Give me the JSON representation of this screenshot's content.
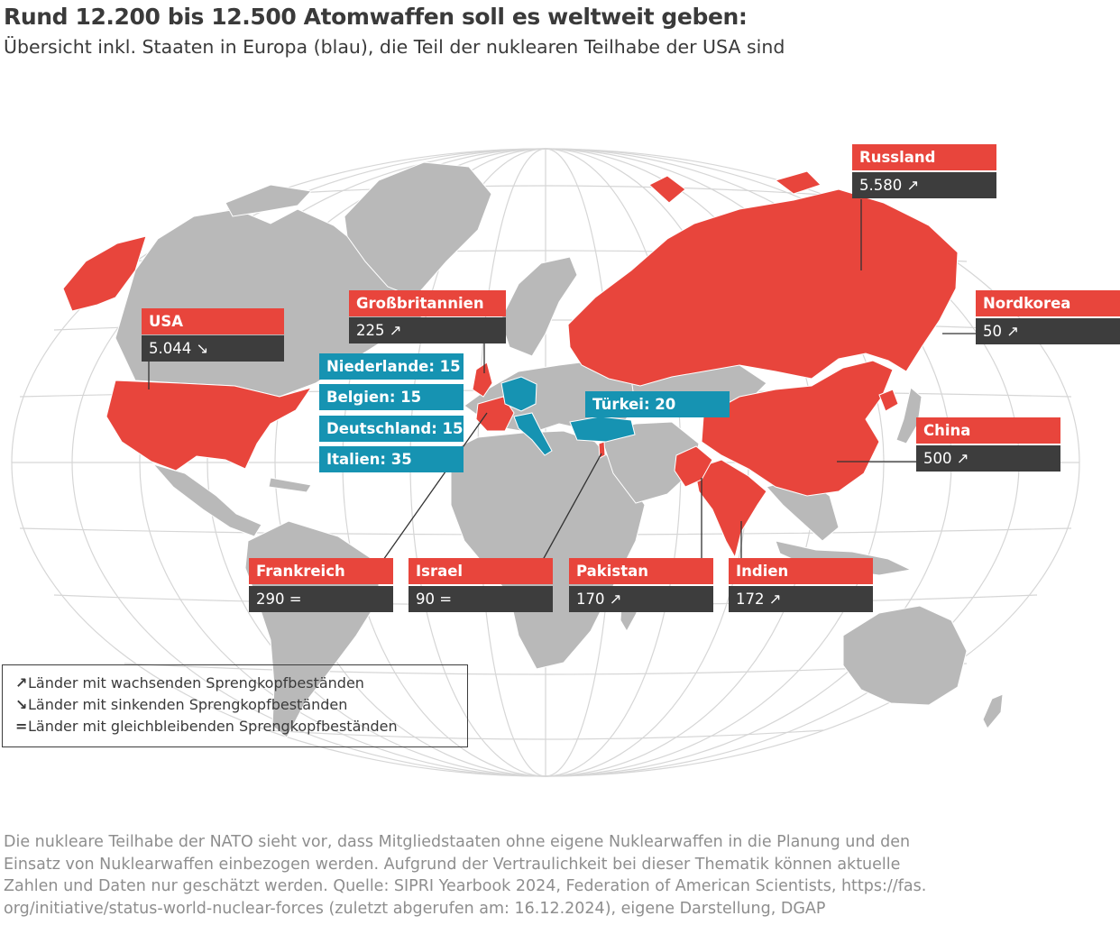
{
  "title": "Rund 12.200 bis 12.500 Atomwaffen soll es weltweit geben:",
  "subtitle": "Übersicht inkl. Staaten in Europa (blau), die Teil der nuklearen Teilhabe der USA sind",
  "colors": {
    "nuclear_state": "#e8453c",
    "sharing_state": "#1693b2",
    "value_box": "#3d3d3d",
    "land": "#b9b9b9",
    "graticule": "#d6d6d6"
  },
  "countries": {
    "usa": {
      "name": "USA",
      "value": "5.044 ↘"
    },
    "uk": {
      "name": "Großbritannien",
      "value": "225 ↗"
    },
    "russia": {
      "name": "Russland",
      "value": "5.580 ↗"
    },
    "northkorea": {
      "name": "Nordkorea",
      "value": "50 ↗"
    },
    "china": {
      "name": "China",
      "value": "500 ↗"
    },
    "france": {
      "name": "Frankreich",
      "value": "290 ="
    },
    "israel": {
      "name": "Israel",
      "value": "90 ="
    },
    "pakistan": {
      "name": "Pakistan",
      "value": "170 ↗"
    },
    "india": {
      "name": "Indien",
      "value": "172 ↗"
    }
  },
  "sharing": {
    "netherlands": "Niederlande: 15",
    "belgium": "Belgien: 15",
    "germany": "Deutschland: 15",
    "italy": "Italien: 35",
    "turkey": "Türkei: 20"
  },
  "legend": {
    "up_symbol": "↗",
    "up": "Länder mit wachsenden Sprengkopfbeständen",
    "down_symbol": "↘",
    "down": "Länder mit sinkenden Sprengkopfbeständen",
    "equal_symbol": "=",
    "equal": "Länder mit gleichbleibenden Sprengkopfbeständen"
  },
  "footnote": "Die nukleare Teilhabe der NATO sieht vor, dass Mitgliedstaaten ohne eigene Nuklearwaffen in die Planung und den\nEinsatz von Nuklearwaffen einbezogen werden. Aufgrund der Vertraulichkeit bei dieser Thematik können aktuelle\nZahlen und Daten nur geschätzt werden. Quelle: SIPRI Yearbook 2024, Federation of American Scientists, https://fas.\norg/initiative/status-world-nuclear-forces (zuletzt abgerufen am: 16.12.2024), eigene Darstellung, DGAP"
}
